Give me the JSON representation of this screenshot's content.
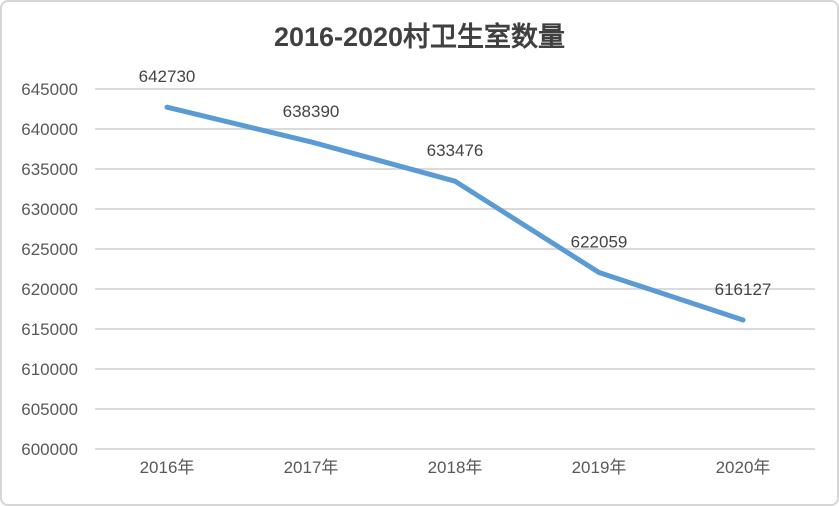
{
  "frame": {
    "background": "#ffffff",
    "border_color": "#d6d6d6"
  },
  "chart_data": {
    "type": "line",
    "title": "2016-2020村卫生室数量",
    "categories": [
      "2016年",
      "2017年",
      "2018年",
      "2019年",
      "2020年"
    ],
    "values": [
      642730,
      638390,
      633476,
      622059,
      616127
    ],
    "data_labels": [
      "642730",
      "638390",
      "633476",
      "622059",
      "616127"
    ],
    "ylim": [
      600000,
      645000
    ],
    "y_tick_step": 5000,
    "y_tick_labels": [
      "600000",
      "605000",
      "610000",
      "615000",
      "620000",
      "625000",
      "630000",
      "635000",
      "640000",
      "645000"
    ],
    "xlabel": "",
    "ylabel": "",
    "grid": "horizontal",
    "legend": "none",
    "colors": {
      "line": "#5B9BD5",
      "gridline": "#DBDBDB",
      "title_text": "#404040",
      "axis_text": "#595959",
      "data_label_text": "#444444"
    }
  }
}
